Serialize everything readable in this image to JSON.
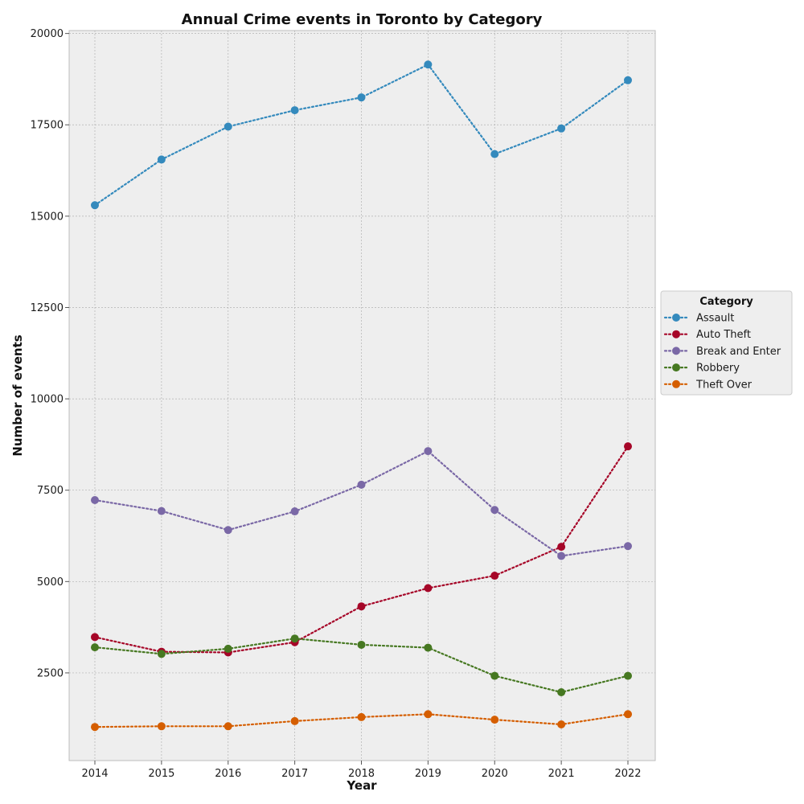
{
  "chart_data": {
    "type": "line",
    "title": "Annual Crime events in Toronto by Category",
    "xlabel": "Year",
    "ylabel": "Number of events",
    "x": [
      2014,
      2015,
      2016,
      2017,
      2018,
      2019,
      2020,
      2021,
      2022
    ],
    "xticks": [
      "2014",
      "2015",
      "2016",
      "2017",
      "2018",
      "2019",
      "2020",
      "2021",
      "2022"
    ],
    "yticks": [
      "2500",
      "5000",
      "7500",
      "10000",
      "12500",
      "15000",
      "17500",
      "20000"
    ],
    "ytick_values": [
      2500,
      5000,
      7500,
      10000,
      12500,
      15000,
      17500,
      20000
    ],
    "ylim": [
      100,
      20080
    ],
    "grid": true,
    "line_style": "dotted",
    "legend": {
      "title": "Category",
      "placement": "right"
    },
    "series": [
      {
        "name": "Assault",
        "color": "#348abd",
        "values": [
          15300,
          16550,
          17450,
          17900,
          18250,
          19150,
          16700,
          17400,
          18720
        ]
      },
      {
        "name": "Auto Theft",
        "color": "#a60628",
        "values": [
          3480,
          3080,
          3060,
          3340,
          4320,
          4820,
          5160,
          5950,
          8700
        ]
      },
      {
        "name": "Break and Enter",
        "color": "#7a68a6",
        "values": [
          7230,
          6930,
          6410,
          6920,
          7650,
          8570,
          6960,
          5700,
          5970
        ]
      },
      {
        "name": "Robbery",
        "color": "#467821",
        "values": [
          3200,
          3020,
          3160,
          3440,
          3270,
          3190,
          2420,
          1970,
          2420
        ]
      },
      {
        "name": "Theft Over",
        "color": "#d55e00",
        "values": [
          1020,
          1040,
          1040,
          1180,
          1290,
          1370,
          1220,
          1090,
          1370
        ]
      }
    ]
  }
}
